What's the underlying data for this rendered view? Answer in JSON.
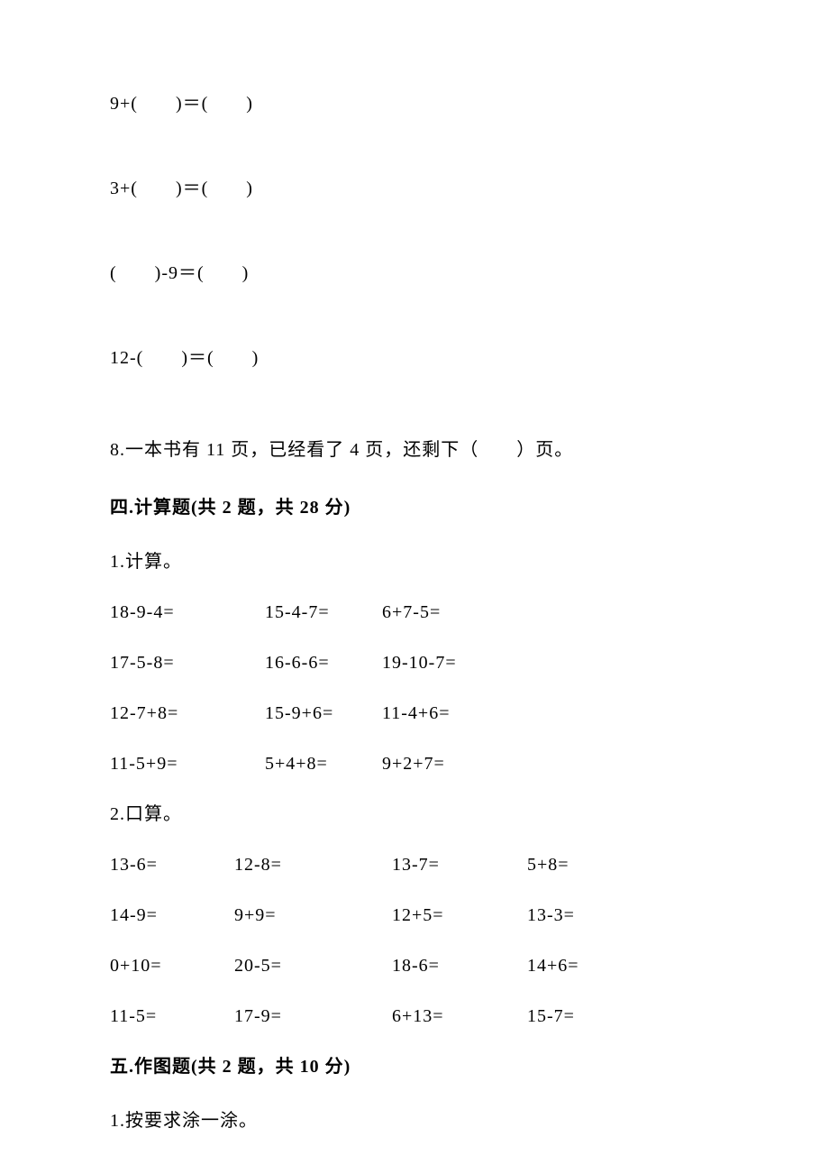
{
  "fill": {
    "line1": "9+(　　)＝(　　)",
    "line2": "3+(　　)＝(　　)",
    "line3": "(　　)-9＝(　　)",
    "line4": "12-(　　)＝(　　)"
  },
  "q8": "8.一本书有 11 页，已经看了 4 页，还剩下（　　）页。",
  "section4": {
    "header": "四.计算题(共 2 题，共 28 分)",
    "sub1": "1.计算。",
    "rows1": [
      [
        "18-9-4=",
        "15-4-7=",
        "6+7-5="
      ],
      [
        "17-5-8=",
        "16-6-6=",
        "19-10-7="
      ],
      [
        "12-7+8=",
        "15-9+6=",
        "11-4+6="
      ],
      [
        "11-5+9=",
        "5+4+8=",
        "9+2+7="
      ]
    ],
    "sub2": "2.口算。",
    "rows2": [
      [
        "13-6=",
        "12-8=",
        "13-7=",
        "5+8="
      ],
      [
        "14-9=",
        "9+9=",
        "12+5=",
        "13-3="
      ],
      [
        "0+10=",
        "20-5=",
        "18-6=",
        "14+6="
      ],
      [
        "11-5=",
        "17-9=",
        "6+13=",
        "15-7="
      ]
    ]
  },
  "section5": {
    "header": "五.作图题(共 2 题，共 10 分)",
    "sub1": "1.按要求涂一涂。"
  }
}
